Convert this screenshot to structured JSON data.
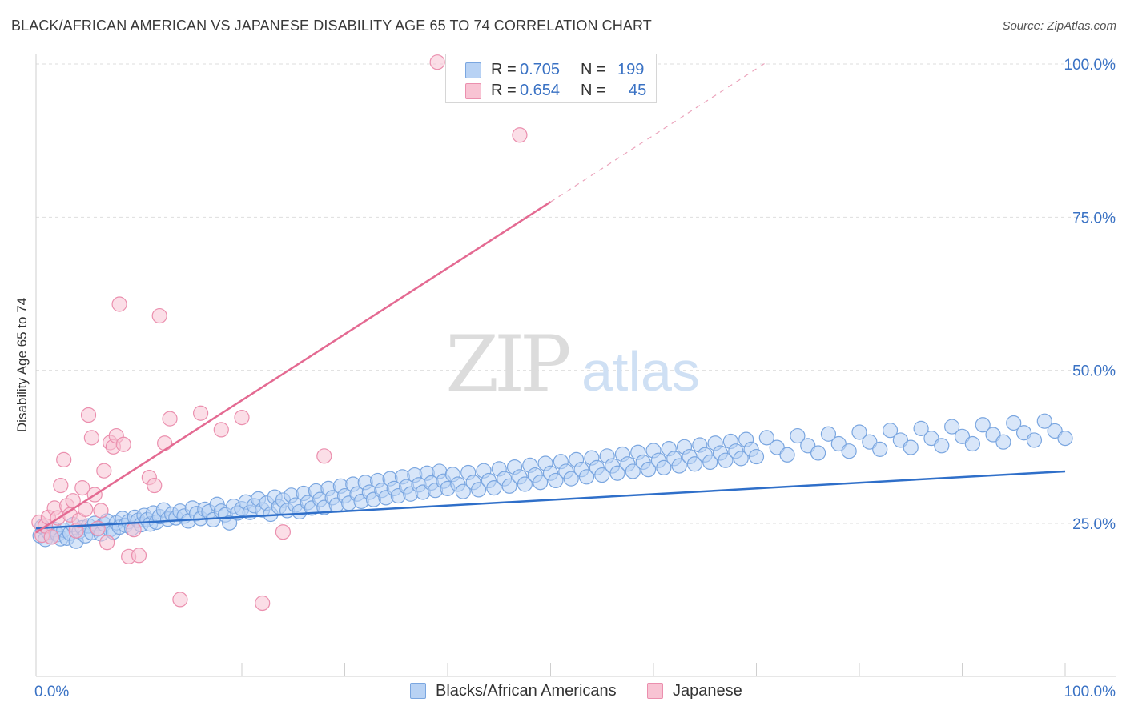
{
  "title": "BLACK/AFRICAN AMERICAN VS JAPANESE DISABILITY AGE 65 TO 74 CORRELATION CHART",
  "source": "Source: ZipAtlas.com",
  "watermark": {
    "zip": "ZIP",
    "atlas": "atlas"
  },
  "legend_top": [
    {
      "r_label": "R =",
      "r_value": "0.705",
      "n_label": "N =",
      "n_value": "199"
    },
    {
      "r_label": "R =",
      "r_value": "0.654",
      "n_label": "N =",
      "n_value": "45"
    }
  ],
  "colors": {
    "blue_fill": "#b8d2f4",
    "blue_stroke": "#7aa6e0",
    "blue_line": "#2f6fc9",
    "pink_fill": "#f8c3d3",
    "pink_stroke": "#eb8fae",
    "pink_line": "#e46a92",
    "tick_label": "#3a72c4",
    "grid": "#dedede"
  },
  "chart_data": {
    "type": "scatter",
    "title": "BLACK/AFRICAN AMERICAN VS JAPANESE DISABILITY AGE 65 TO 74 CORRELATION CHART",
    "xlabel": "",
    "ylabel": "Disability Age 65 to 74",
    "xlim": [
      0,
      100
    ],
    "ylim": [
      0,
      102
    ],
    "x_tick_labels": [
      {
        "value": 0,
        "label": "0.0%"
      },
      {
        "value": 100,
        "label": "100.0%"
      }
    ],
    "y_tick_labels": [
      {
        "value": 25,
        "label": "25.0%"
      },
      {
        "value": 50,
        "label": "50.0%"
      },
      {
        "value": 75,
        "label": "75.0%"
      },
      {
        "value": 100,
        "label": "100.0%"
      }
    ],
    "grid": true,
    "legend": "top-center and bottom",
    "series": [
      {
        "name": "Blacks/African Americans",
        "R": 0.705,
        "N": 199,
        "trend": {
          "x": [
            0,
            100
          ],
          "y": [
            24.2,
            33.5
          ]
        },
        "points": [
          [
            0.4,
            23.0
          ],
          [
            0.6,
            24.5
          ],
          [
            0.9,
            22.4
          ],
          [
            1.2,
            23.6
          ],
          [
            1.5,
            22.8
          ],
          [
            1.8,
            24.0
          ],
          [
            2.1,
            23.2
          ],
          [
            2.4,
            22.5
          ],
          [
            2.7,
            23.9
          ],
          [
            3.0,
            22.6
          ],
          [
            3.3,
            23.4
          ],
          [
            3.6,
            24.8
          ],
          [
            3.9,
            22.1
          ],
          [
            4.2,
            23.7
          ],
          [
            4.5,
            24.3
          ],
          [
            4.8,
            23.0
          ],
          [
            5.1,
            24.6
          ],
          [
            5.4,
            23.5
          ],
          [
            5.7,
            25.0
          ],
          [
            6.0,
            24.1
          ],
          [
            6.3,
            23.3
          ],
          [
            6.6,
            24.9
          ],
          [
            6.9,
            25.4
          ],
          [
            7.2,
            24.0
          ],
          [
            7.5,
            23.6
          ],
          [
            7.8,
            25.1
          ],
          [
            8.1,
            24.4
          ],
          [
            8.4,
            25.8
          ],
          [
            8.7,
            24.7
          ],
          [
            9.0,
            25.3
          ],
          [
            9.3,
            24.2
          ],
          [
            9.6,
            26.0
          ],
          [
            9.9,
            25.5
          ],
          [
            10.2,
            24.8
          ],
          [
            10.5,
            26.3
          ],
          [
            10.8,
            25.6
          ],
          [
            11.1,
            24.9
          ],
          [
            11.4,
            26.7
          ],
          [
            11.7,
            25.2
          ],
          [
            12.0,
            26.1
          ],
          [
            12.4,
            27.2
          ],
          [
            12.8,
            25.7
          ],
          [
            13.2,
            26.5
          ],
          [
            13.6,
            25.9
          ],
          [
            14.0,
            27.0
          ],
          [
            14.4,
            26.2
          ],
          [
            14.8,
            25.4
          ],
          [
            15.2,
            27.5
          ],
          [
            15.6,
            26.6
          ],
          [
            16.0,
            25.8
          ],
          [
            16.4,
            27.3
          ],
          [
            16.8,
            26.9
          ],
          [
            17.2,
            25.6
          ],
          [
            17.6,
            28.1
          ],
          [
            18.0,
            27.0
          ],
          [
            18.4,
            26.4
          ],
          [
            18.8,
            25.1
          ],
          [
            19.2,
            27.8
          ],
          [
            19.6,
            26.7
          ],
          [
            20.0,
            27.4
          ],
          [
            20.4,
            28.5
          ],
          [
            20.8,
            26.8
          ],
          [
            21.2,
            27.9
          ],
          [
            21.6,
            29.0
          ],
          [
            22.0,
            27.2
          ],
          [
            22.4,
            28.3
          ],
          [
            22.8,
            26.5
          ],
          [
            23.2,
            29.3
          ],
          [
            23.6,
            27.7
          ],
          [
            24.0,
            28.8
          ],
          [
            24.4,
            27.1
          ],
          [
            24.8,
            29.6
          ],
          [
            25.2,
            28.0
          ],
          [
            25.6,
            26.9
          ],
          [
            26.0,
            29.9
          ],
          [
            26.4,
            28.4
          ],
          [
            26.8,
            27.5
          ],
          [
            27.2,
            30.3
          ],
          [
            27.6,
            28.9
          ],
          [
            28.0,
            27.6
          ],
          [
            28.4,
            30.7
          ],
          [
            28.8,
            29.2
          ],
          [
            29.2,
            28.0
          ],
          [
            29.6,
            31.1
          ],
          [
            30.0,
            29.5
          ],
          [
            30.4,
            28.3
          ],
          [
            30.8,
            31.4
          ],
          [
            31.2,
            29.8
          ],
          [
            31.6,
            28.6
          ],
          [
            32.0,
            31.7
          ],
          [
            32.4,
            30.1
          ],
          [
            32.8,
            28.9
          ],
          [
            33.2,
            32.0
          ],
          [
            33.6,
            30.4
          ],
          [
            34.0,
            29.2
          ],
          [
            34.4,
            32.3
          ],
          [
            34.8,
            30.7
          ],
          [
            35.2,
            29.5
          ],
          [
            35.6,
            32.6
          ],
          [
            36.0,
            31.0
          ],
          [
            36.4,
            29.8
          ],
          [
            36.8,
            32.9
          ],
          [
            37.2,
            31.3
          ],
          [
            37.6,
            30.1
          ],
          [
            38.0,
            33.2
          ],
          [
            38.4,
            31.6
          ],
          [
            38.8,
            30.4
          ],
          [
            39.2,
            33.5
          ],
          [
            39.6,
            31.9
          ],
          [
            40.0,
            30.7
          ],
          [
            40.5,
            33.0
          ],
          [
            41.0,
            31.4
          ],
          [
            41.5,
            30.2
          ],
          [
            42.0,
            33.3
          ],
          [
            42.5,
            31.7
          ],
          [
            43.0,
            30.5
          ],
          [
            43.5,
            33.6
          ],
          [
            44.0,
            32.0
          ],
          [
            44.5,
            30.8
          ],
          [
            45.0,
            33.9
          ],
          [
            45.5,
            32.3
          ],
          [
            46.0,
            31.1
          ],
          [
            46.5,
            34.2
          ],
          [
            47.0,
            32.6
          ],
          [
            47.5,
            31.4
          ],
          [
            48.0,
            34.5
          ],
          [
            48.5,
            32.9
          ],
          [
            49.0,
            31.7
          ],
          [
            49.5,
            34.8
          ],
          [
            50.0,
            33.2
          ],
          [
            50.5,
            32.0
          ],
          [
            51.0,
            35.1
          ],
          [
            51.5,
            33.5
          ],
          [
            52.0,
            32.3
          ],
          [
            52.5,
            35.4
          ],
          [
            53.0,
            33.8
          ],
          [
            53.5,
            32.6
          ],
          [
            54.0,
            35.7
          ],
          [
            54.5,
            34.1
          ],
          [
            55.0,
            32.9
          ],
          [
            55.5,
            36.0
          ],
          [
            56.0,
            34.4
          ],
          [
            56.5,
            33.2
          ],
          [
            57.0,
            36.3
          ],
          [
            57.5,
            34.7
          ],
          [
            58.0,
            33.5
          ],
          [
            58.5,
            36.6
          ],
          [
            59.0,
            35.0
          ],
          [
            59.5,
            33.8
          ],
          [
            60.0,
            36.9
          ],
          [
            60.5,
            35.3
          ],
          [
            61.0,
            34.1
          ],
          [
            61.5,
            37.2
          ],
          [
            62.0,
            35.6
          ],
          [
            62.5,
            34.4
          ],
          [
            63.0,
            37.5
          ],
          [
            63.5,
            35.9
          ],
          [
            64.0,
            34.7
          ],
          [
            64.5,
            37.8
          ],
          [
            65.0,
            36.2
          ],
          [
            65.5,
            35.0
          ],
          [
            66.0,
            38.1
          ],
          [
            66.5,
            36.5
          ],
          [
            67.0,
            35.3
          ],
          [
            67.5,
            38.4
          ],
          [
            68.0,
            36.8
          ],
          [
            68.5,
            35.6
          ],
          [
            69.0,
            38.7
          ],
          [
            69.5,
            37.1
          ],
          [
            70.0,
            35.9
          ],
          [
            71.0,
            39.0
          ],
          [
            72.0,
            37.4
          ],
          [
            73.0,
            36.2
          ],
          [
            74.0,
            39.3
          ],
          [
            75.0,
            37.7
          ],
          [
            76.0,
            36.5
          ],
          [
            77.0,
            39.6
          ],
          [
            78.0,
            38.0
          ],
          [
            79.0,
            36.8
          ],
          [
            80.0,
            39.9
          ],
          [
            81.0,
            38.3
          ],
          [
            82.0,
            37.1
          ],
          [
            83.0,
            40.2
          ],
          [
            84.0,
            38.6
          ],
          [
            85.0,
            37.4
          ],
          [
            86.0,
            40.5
          ],
          [
            87.0,
            38.9
          ],
          [
            88.0,
            37.7
          ],
          [
            89.0,
            40.8
          ],
          [
            90.0,
            39.2
          ],
          [
            91.0,
            38.0
          ],
          [
            92.0,
            41.1
          ],
          [
            93.0,
            39.5
          ],
          [
            94.0,
            38.3
          ],
          [
            95.0,
            41.4
          ],
          [
            96.0,
            39.8
          ],
          [
            97.0,
            38.6
          ],
          [
            98.0,
            41.7
          ],
          [
            99.0,
            40.1
          ],
          [
            100.0,
            38.9
          ]
        ]
      },
      {
        "name": "Japanese",
        "R": 0.654,
        "N": 45,
        "trend": {
          "x": [
            0,
            50
          ],
          "y": [
            23.5,
            77.5
          ]
        },
        "trend_extension": {
          "x": [
            50,
            71
          ],
          "y": [
            77.5,
            100.3
          ]
        },
        "points": [
          [
            0.3,
            25.2
          ],
          [
            0.6,
            23.1
          ],
          [
            0.9,
            24.6
          ],
          [
            1.2,
            26.0
          ],
          [
            1.5,
            22.8
          ],
          [
            1.8,
            27.5
          ],
          [
            2.1,
            25.9
          ],
          [
            2.4,
            31.2
          ],
          [
            2.7,
            35.4
          ],
          [
            3.0,
            27.9
          ],
          [
            3.3,
            26.4
          ],
          [
            3.6,
            28.7
          ],
          [
            3.9,
            23.8
          ],
          [
            4.2,
            25.5
          ],
          [
            4.5,
            30.8
          ],
          [
            4.8,
            27.3
          ],
          [
            5.1,
            42.7
          ],
          [
            5.4,
            39.0
          ],
          [
            5.7,
            29.7
          ],
          [
            6.0,
            24.2
          ],
          [
            6.3,
            27.1
          ],
          [
            6.6,
            33.6
          ],
          [
            6.9,
            21.9
          ],
          [
            7.2,
            38.2
          ],
          [
            7.5,
            37.5
          ],
          [
            7.8,
            39.3
          ],
          [
            8.1,
            60.8
          ],
          [
            8.5,
            37.9
          ],
          [
            9.0,
            19.6
          ],
          [
            9.5,
            24.0
          ],
          [
            10.0,
            19.8
          ],
          [
            11.0,
            32.5
          ],
          [
            11.5,
            31.2
          ],
          [
            12.0,
            58.9
          ],
          [
            12.5,
            38.1
          ],
          [
            13.0,
            42.1
          ],
          [
            14.0,
            12.6
          ],
          [
            16.0,
            43.0
          ],
          [
            18.0,
            40.3
          ],
          [
            20.0,
            42.3
          ],
          [
            22.0,
            12.0
          ],
          [
            28.0,
            36.0
          ],
          [
            39.0,
            100.3
          ],
          [
            47.0,
            88.4
          ],
          [
            24.0,
            23.6
          ]
        ]
      }
    ]
  },
  "legend_bottom": [
    {
      "label": "Blacks/African Americans"
    },
    {
      "label": "Japanese"
    }
  ]
}
